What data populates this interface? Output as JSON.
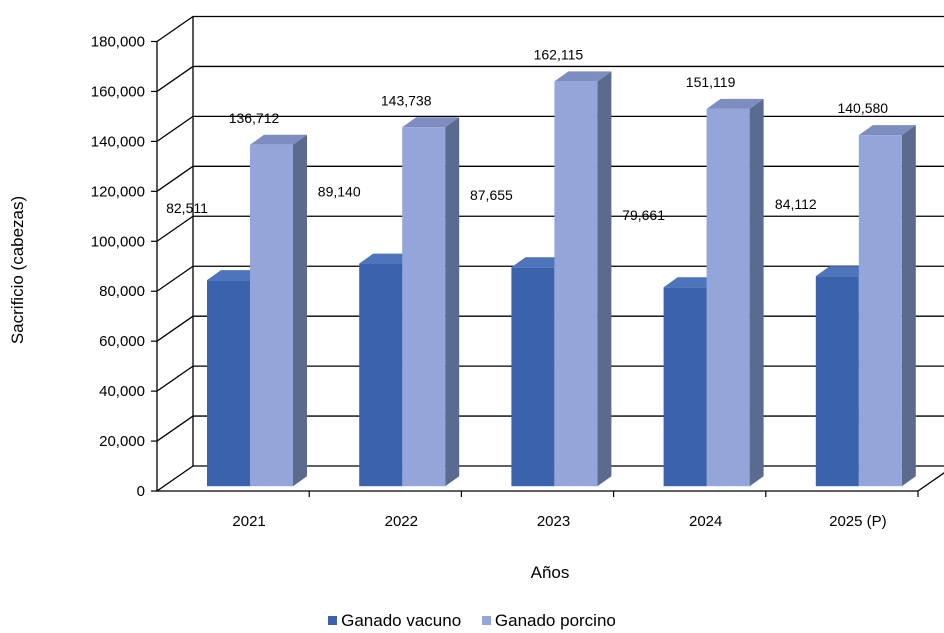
{
  "chart_data": {
    "type": "bar",
    "categories": [
      "2021",
      "2022",
      "2023",
      "2024",
      "2025 (P)"
    ],
    "series": [
      {
        "name": "Ganado vacuno",
        "values": [
          82511,
          89140,
          87655,
          79661,
          84112
        ],
        "labels": [
          "82,511",
          "89,140",
          "87,655",
          "79,661",
          "84,112"
        ],
        "color": "#3a62ad",
        "side_color": "#28467e",
        "top_color": "#4e74bc"
      },
      {
        "name": "Ganado porcino",
        "values": [
          136712,
          143738,
          162115,
          151119,
          140580
        ],
        "labels": [
          "136,712",
          "143,738",
          "162,115",
          "151,119",
          "140,580"
        ],
        "color": "#94a5d9",
        "side_color": "#5b6a8f",
        "top_color": "#7d8dbf"
      }
    ],
    "xlabel": "Años",
    "ylabel": "Sacrificio (cabezas)",
    "ylim": [
      0,
      180000
    ],
    "yticks": [
      "0",
      "20,000",
      "40,000",
      "60,000",
      "80,000",
      "100,000",
      "120,000",
      "140,000",
      "160,000",
      "180,000"
    ],
    "grid": true,
    "legend_position": "bottom",
    "style": "3d-clustered-column"
  }
}
